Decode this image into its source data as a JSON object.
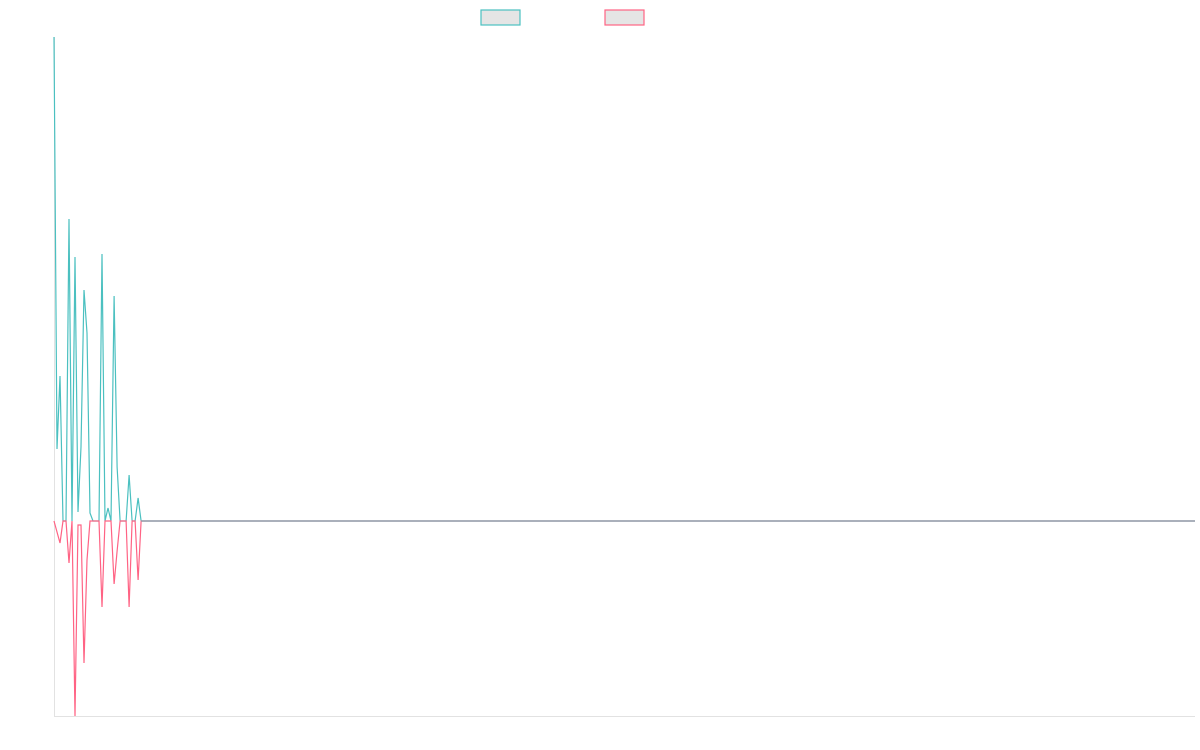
{
  "chart_data": {
    "type": "line",
    "title": "",
    "xlabel": "",
    "ylabel": "",
    "grid": false,
    "legend_placement": "top",
    "ylim": [
      -195,
      484
    ],
    "series": [
      {
        "color": "#4bc0c0",
        "values": [
          484,
          72,
          145,
          0,
          0,
          302,
          0,
          264,
          9,
          74,
          231,
          188,
          8,
          0,
          0,
          0,
          267,
          0,
          13,
          0,
          225,
          54,
          0,
          0,
          0,
          46,
          0,
          0,
          23,
          0,
          0,
          0,
          0,
          0,
          0,
          0,
          0,
          0,
          0,
          0,
          0,
          0,
          0,
          0,
          0,
          0,
          0,
          0,
          0,
          0,
          0,
          0,
          0,
          0,
          0,
          0,
          0,
          0,
          0,
          0,
          0,
          0,
          0,
          0,
          0,
          0,
          0,
          0,
          0,
          0,
          0,
          0,
          0,
          0,
          0,
          0,
          0,
          0,
          0,
          0,
          0,
          0,
          0,
          0,
          0,
          0,
          0,
          0,
          0,
          0,
          0,
          0,
          0,
          0,
          0,
          0,
          0,
          0,
          0,
          0,
          0,
          0,
          0,
          0,
          0,
          0,
          0,
          0,
          0,
          0,
          0,
          0,
          0,
          0,
          0,
          0,
          0,
          0,
          0,
          0,
          0,
          0,
          0,
          0,
          0,
          0,
          0,
          0,
          0,
          0,
          0,
          0,
          0,
          0,
          0,
          0,
          0,
          0,
          0,
          0,
          0,
          0,
          0,
          0,
          0,
          0,
          0,
          0,
          0,
          0,
          0,
          0,
          0,
          0,
          0,
          0,
          0,
          0,
          0,
          0,
          0,
          0,
          0,
          0,
          0,
          0,
          0,
          0,
          0,
          0,
          0,
          0,
          0,
          0,
          0,
          0,
          0,
          0,
          0,
          0,
          0,
          0,
          0,
          0,
          0,
          0,
          0,
          0,
          0,
          0,
          0,
          0,
          0,
          0,
          0,
          0,
          0,
          0,
          0,
          0,
          0,
          0,
          0,
          0,
          0,
          0,
          0,
          0,
          0,
          0,
          0,
          0,
          0,
          0,
          0,
          0,
          0,
          0,
          0,
          0,
          0,
          0,
          0,
          0,
          0,
          0,
          0,
          0,
          0,
          0,
          0,
          0,
          0,
          0,
          0,
          0,
          0,
          0,
          0,
          0,
          0,
          0,
          0,
          0,
          0,
          0,
          0,
          0,
          0,
          0,
          0,
          0,
          0,
          0,
          0,
          0,
          0,
          0,
          0,
          0,
          0,
          0,
          0,
          0,
          0,
          0,
          0,
          0,
          0,
          0,
          0,
          0,
          0,
          0,
          0,
          0,
          0,
          0,
          0,
          0,
          0,
          0,
          0,
          0,
          0,
          0,
          0,
          0,
          0,
          0,
          0,
          0,
          0,
          0,
          0,
          0,
          0,
          0,
          0,
          0,
          0,
          0,
          0,
          0,
          0,
          0,
          0,
          0,
          0,
          0,
          0,
          0,
          0,
          0,
          0,
          0,
          0,
          0,
          0,
          0,
          0,
          0,
          0,
          0,
          0,
          0,
          0,
          0,
          0,
          0,
          0,
          0,
          0,
          0,
          0,
          0,
          0,
          0,
          0,
          0,
          0,
          0,
          0,
          0,
          0,
          0,
          0,
          0,
          0,
          0,
          0,
          0,
          0,
          0,
          0,
          0,
          0,
          0,
          0,
          0,
          0,
          0,
          0,
          0,
          0,
          0,
          0,
          0,
          0,
          0,
          0,
          0,
          0,
          0,
          0,
          0,
          0,
          0,
          0,
          0,
          0
        ]
      },
      {
        "color": "#ff6384",
        "values": [
          0,
          -11,
          -22,
          0,
          0,
          -42,
          0,
          -195,
          -4,
          -4,
          -142,
          -39,
          0,
          0,
          0,
          0,
          -86,
          0,
          0,
          0,
          -63,
          -30,
          0,
          0,
          0,
          -86,
          0,
          0,
          -59,
          0,
          0,
          0,
          0,
          0,
          0,
          0,
          0,
          0,
          0,
          0,
          0,
          0,
          0,
          0,
          0,
          0,
          0,
          0,
          0,
          0,
          0,
          0,
          0,
          0,
          0,
          0,
          0,
          0,
          0,
          0,
          0,
          0,
          0,
          0,
          0,
          0,
          0,
          0,
          0,
          0,
          0,
          0,
          0,
          0,
          0,
          0,
          0,
          0,
          0,
          0,
          0,
          0,
          0,
          0,
          0,
          0,
          0,
          0,
          0,
          0,
          0,
          0,
          0,
          0,
          0,
          0,
          0,
          0,
          0,
          0,
          0,
          0,
          0,
          0,
          0,
          0,
          0,
          0,
          0,
          0,
          0,
          0,
          0,
          0,
          0,
          0,
          0,
          0,
          0,
          0,
          0,
          0,
          0,
          0,
          0,
          0,
          0,
          0,
          0,
          0,
          0,
          0,
          0,
          0,
          0,
          0,
          0,
          0,
          0,
          0,
          0,
          0,
          0,
          0,
          0,
          0,
          0,
          0,
          0,
          0,
          0,
          0,
          0,
          0,
          0,
          0,
          0,
          0,
          0,
          0,
          0,
          0,
          0,
          0,
          0,
          0,
          0,
          0,
          0,
          0,
          0,
          0,
          0,
          0,
          0,
          0,
          0,
          0,
          0,
          0,
          0,
          0,
          0,
          0,
          0,
          0,
          0,
          0,
          0,
          0,
          0,
          0,
          0,
          0,
          0,
          0,
          0,
          0,
          0,
          0,
          0,
          0,
          0,
          0,
          0,
          0,
          0,
          0,
          0,
          0,
          0,
          0,
          0,
          0,
          0,
          0,
          0,
          0,
          0,
          0,
          0,
          0,
          0,
          0,
          0,
          0,
          0,
          0,
          0,
          0,
          0,
          0,
          0,
          0,
          0,
          0,
          0,
          0,
          0,
          0,
          0,
          0,
          0,
          0,
          0,
          0,
          0,
          0,
          0,
          0,
          0,
          0,
          0,
          0,
          0,
          0,
          0,
          0,
          0,
          0,
          0,
          0,
          0,
          0,
          0,
          0,
          0,
          0,
          0,
          0,
          0,
          0,
          0,
          0,
          0,
          0,
          0,
          0,
          0,
          0,
          0,
          0,
          0,
          0,
          0,
          0,
          0,
          0,
          0,
          0,
          0,
          0,
          0,
          0,
          0,
          0,
          0,
          0,
          0,
          0,
          0,
          0,
          0,
          0,
          0,
          0,
          0,
          0,
          0,
          0,
          0,
          0,
          0,
          0,
          0,
          0,
          0,
          0,
          0,
          0,
          0,
          0,
          0,
          0,
          0,
          0,
          0,
          0,
          0,
          0,
          0,
          0,
          0,
          0,
          0,
          0,
          0,
          0,
          0,
          0,
          0,
          0,
          0,
          0,
          0,
          0,
          0,
          0,
          0,
          0,
          0,
          0,
          0,
          0,
          0,
          0,
          0,
          0,
          0,
          0,
          0,
          0,
          0,
          0,
          0,
          0,
          0,
          0,
          0,
          0,
          0,
          0,
          0,
          0,
          0,
          0,
          0,
          0,
          0,
          0,
          0
        ]
      }
    ],
    "zero_line_color": "#8ca0ac",
    "legend_box_fill": "#e5e5e5"
  }
}
